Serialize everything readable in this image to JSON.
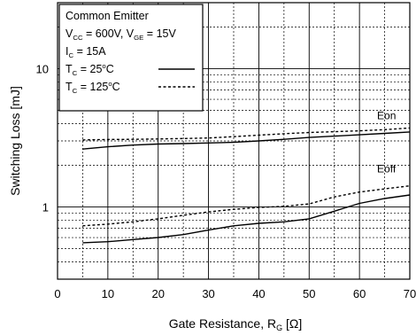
{
  "chart_data": {
    "type": "line",
    "xlabel": "Gate Resistance, R",
    "xlabel_sub": "G",
    "xlabel_unit": " [Ω]",
    "ylabel": "Switching Loss [mJ]",
    "y_scale": "log",
    "xlim": [
      0,
      70
    ],
    "ylim": [
      0.3,
      30
    ],
    "x_ticks": [
      0,
      10,
      20,
      30,
      40,
      50,
      60,
      70
    ],
    "y_tick_labels": [
      {
        "value": 1,
        "label": "1"
      },
      {
        "value": 10,
        "label": "10"
      }
    ],
    "grid": true,
    "legend": {
      "placement": "top-left",
      "conditions": [
        {
          "parts": [
            {
              "t": "Common Emitter"
            }
          ]
        },
        {
          "parts": [
            {
              "t": "V"
            },
            {
              "t": "CC",
              "sub": true
            },
            {
              "t": " = 600V, V"
            },
            {
              "t": "GE",
              "sub": true
            },
            {
              "t": " = 15V"
            }
          ]
        },
        {
          "parts": [
            {
              "t": "I"
            },
            {
              "t": "C",
              "sub": true
            },
            {
              "t": " = 15A"
            }
          ]
        }
      ],
      "entries": [
        {
          "parts": [
            {
              "t": "T"
            },
            {
              "t": "C",
              "sub": true
            },
            {
              "t": " = 25"
            },
            {
              "t": "o",
              "sup": true
            },
            {
              "t": "C"
            }
          ],
          "style": "solid"
        },
        {
          "parts": [
            {
              "t": "T"
            },
            {
              "t": "C",
              "sub": true
            },
            {
              "t": " = 125"
            },
            {
              "t": "o",
              "sup": true
            },
            {
              "t": "C"
            }
          ],
          "style": "dashed"
        }
      ]
    },
    "series": [
      {
        "label": "Eon",
        "temp": "25C",
        "style": "solid",
        "x": [
          5,
          10,
          15,
          20,
          25,
          30,
          35,
          40,
          45,
          50,
          55,
          60,
          65,
          70
        ],
        "values": [
          2.62,
          2.72,
          2.8,
          2.85,
          2.87,
          2.9,
          2.93,
          3.0,
          3.08,
          3.18,
          3.25,
          3.32,
          3.4,
          3.48
        ]
      },
      {
        "label": "Eon",
        "temp": "125C",
        "style": "dashed",
        "x": [
          5,
          10,
          15,
          20,
          25,
          30,
          35,
          40,
          45,
          50,
          55,
          60,
          65,
          70
        ],
        "values": [
          3.05,
          3.07,
          3.08,
          3.1,
          3.12,
          3.15,
          3.22,
          3.3,
          3.38,
          3.45,
          3.5,
          3.55,
          3.62,
          3.72
        ]
      },
      {
        "label": "Eoff",
        "temp": "25C",
        "style": "solid",
        "x": [
          5,
          10,
          15,
          20,
          25,
          30,
          35,
          40,
          45,
          50,
          55,
          60,
          65,
          70
        ],
        "values": [
          0.55,
          0.56,
          0.58,
          0.6,
          0.63,
          0.68,
          0.73,
          0.76,
          0.78,
          0.82,
          0.93,
          1.06,
          1.15,
          1.22
        ]
      },
      {
        "label": "Eoff",
        "temp": "125C",
        "style": "dashed",
        "x": [
          5,
          10,
          15,
          20,
          25,
          30,
          35,
          40,
          45,
          50,
          55,
          60,
          65,
          70
        ],
        "values": [
          0.73,
          0.75,
          0.78,
          0.82,
          0.87,
          0.92,
          0.96,
          0.99,
          1.01,
          1.05,
          1.18,
          1.28,
          1.35,
          1.42
        ]
      }
    ],
    "annotations": [
      {
        "text": "Eon",
        "x": 63.5,
        "y": 4.3
      },
      {
        "text": "Eoff",
        "x": 63.5,
        "y": 1.78
      }
    ]
  }
}
